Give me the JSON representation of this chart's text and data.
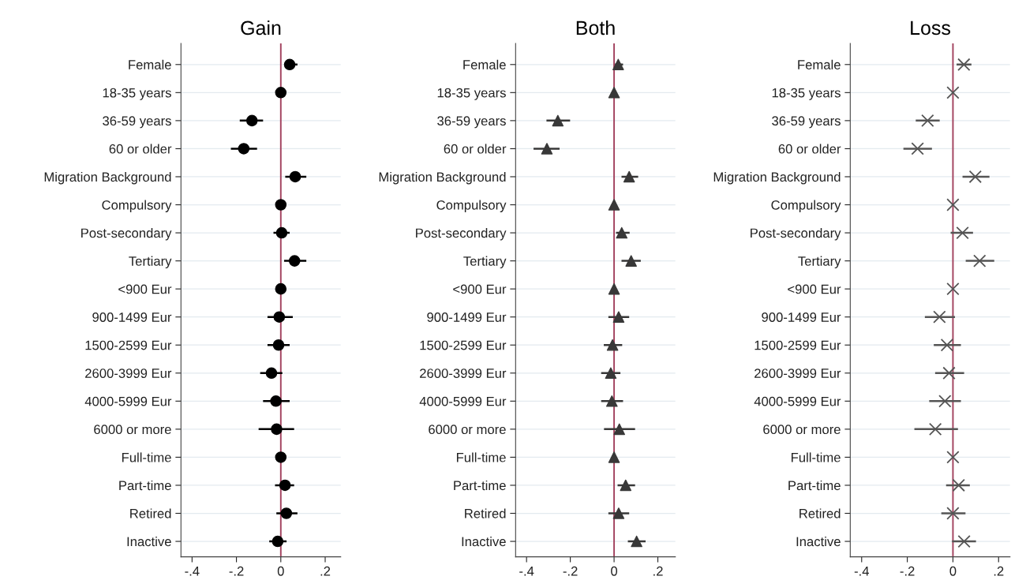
{
  "chart_data": [
    {
      "type": "scatter",
      "title": "Gain",
      "orientation": "horizontal",
      "marker": "circle",
      "color": "#000000",
      "grid": "y",
      "categories": [
        "Female",
        "18-35 years",
        "36-59 years",
        "60 or older",
        "Migration Background",
        "Compulsory",
        "Post-secondary",
        "Tertiary",
        "<900 Eur",
        "900-1499 Eur",
        "1500-2599 Eur",
        "2600-3999 Eur",
        "4000-5999 Eur",
        "6000 or more",
        "Full-time",
        "Part-time",
        "Retired",
        "Inactive"
      ],
      "values": [
        0.04,
        0,
        -0.13,
        -0.167,
        0.065,
        0,
        0.004,
        0.062,
        0,
        -0.007,
        -0.01,
        -0.042,
        -0.022,
        -0.019,
        0,
        0.019,
        0.025,
        -0.014
      ],
      "errors": [
        [
          0.015,
          0.075
        ],
        null,
        [
          -0.185,
          -0.08
        ],
        [
          -0.225,
          -0.107
        ],
        [
          0.02,
          0.115
        ],
        null,
        [
          -0.033,
          0.04
        ],
        [
          0.015,
          0.115
        ],
        null,
        [
          -0.06,
          0.054
        ],
        [
          -0.06,
          0.04
        ],
        [
          -0.093,
          0.007
        ],
        [
          -0.08,
          0.04
        ],
        [
          -0.1,
          0.06
        ],
        null,
        [
          -0.026,
          0.06
        ],
        [
          -0.02,
          0.075
        ],
        [
          -0.052,
          0.026
        ]
      ],
      "xlim": [
        -0.45,
        0.27
      ],
      "xticks": [
        {
          "value": -0.4,
          "label": "-.4"
        },
        {
          "value": -0.2,
          "label": "-.2"
        },
        0,
        {
          "value": 0.2,
          "label": ".2"
        }
      ],
      "ref_lines": [
        {
          "axis": "x",
          "value": 0,
          "color": "#a3435f"
        }
      ]
    },
    {
      "type": "scatter",
      "title": "Both",
      "orientation": "horizontal",
      "marker": "triangle",
      "color": "#383838",
      "grid": "y",
      "categories": [
        "Female",
        "18-35 years",
        "36-59 years",
        "60 or older",
        "Migration Background",
        "Compulsory",
        "Post-secondary",
        "Tertiary",
        "<900 Eur",
        "900-1499 Eur",
        "1500-2599 Eur",
        "2600-3999 Eur",
        "4000-5999 Eur",
        "6000 or more",
        "Full-time",
        "Part-time",
        "Retired",
        "Inactive"
      ],
      "values": [
        0.019,
        0,
        -0.257,
        -0.307,
        0.069,
        0,
        0.035,
        0.078,
        0,
        0.021,
        -0.007,
        -0.015,
        -0.01,
        0.024,
        0,
        0.053,
        0.021,
        0.103
      ],
      "errors": [
        [
          0.004,
          0.041
        ],
        null,
        [
          -0.309,
          -0.201
        ],
        [
          -0.368,
          -0.249
        ],
        [
          0.034,
          0.11
        ],
        null,
        [
          0.009,
          0.071
        ],
        [
          0.034,
          0.122
        ],
        null,
        [
          -0.026,
          0.069
        ],
        [
          -0.047,
          0.037
        ],
        [
          -0.059,
          0.029
        ],
        [
          -0.059,
          0.041
        ],
        [
          -0.046,
          0.096
        ],
        null,
        [
          0.016,
          0.096
        ],
        [
          -0.026,
          0.069
        ],
        [
          0.063,
          0.144
        ]
      ],
      "xlim": [
        -0.45,
        0.28
      ],
      "xticks": [
        {
          "value": -0.4,
          "label": "-.4"
        },
        {
          "value": -0.2,
          "label": "-.2"
        },
        0,
        {
          "value": 0.2,
          "label": ".2"
        }
      ],
      "ref_lines": [
        {
          "axis": "x",
          "value": 0,
          "color": "#a3435f"
        }
      ]
    },
    {
      "type": "scatter",
      "title": "Loss",
      "orientation": "horizontal",
      "marker": "cross",
      "color": "#555555",
      "grid": "y",
      "categories": [
        "Female",
        "18-35 years",
        "36-59 years",
        "60 or older",
        "Migration Background",
        "Compulsory",
        "Post-secondary",
        "Tertiary",
        "<900 Eur",
        "900-1499 Eur",
        "1500-2599 Eur",
        "2600-3999 Eur",
        "4000-5999 Eur",
        "6000 or more",
        "Full-time",
        "Part-time",
        "Retired",
        "Inactive"
      ],
      "values": [
        0.048,
        0,
        -0.111,
        -0.155,
        0.098,
        0,
        0.042,
        0.117,
        0,
        -0.059,
        -0.026,
        -0.017,
        -0.035,
        -0.077,
        0,
        0.025,
        0,
        0.049
      ],
      "errors": [
        [
          0.016,
          0.081
        ],
        null,
        [
          -0.163,
          -0.058
        ],
        [
          -0.217,
          -0.092
        ],
        [
          0.042,
          0.16
        ],
        null,
        [
          -0.01,
          0.088
        ],
        [
          0.056,
          0.181
        ],
        null,
        [
          -0.123,
          0.009
        ],
        [
          -0.084,
          0.035
        ],
        [
          -0.078,
          0.049
        ],
        [
          -0.104,
          0.035
        ],
        [
          -0.169,
          0.022
        ],
        null,
        [
          -0.03,
          0.074
        ],
        [
          -0.051,
          0.055
        ],
        [
          -0.004,
          0.101
        ]
      ],
      "xlim": [
        -0.45,
        0.25
      ],
      "xticks": [
        {
          "value": -0.4,
          "label": "-.4"
        },
        {
          "value": -0.2,
          "label": "-.2"
        },
        0,
        {
          "value": 0.2,
          "label": ".2"
        }
      ],
      "ref_lines": [
        {
          "axis": "x",
          "value": 0,
          "color": "#a3435f"
        }
      ]
    }
  ]
}
